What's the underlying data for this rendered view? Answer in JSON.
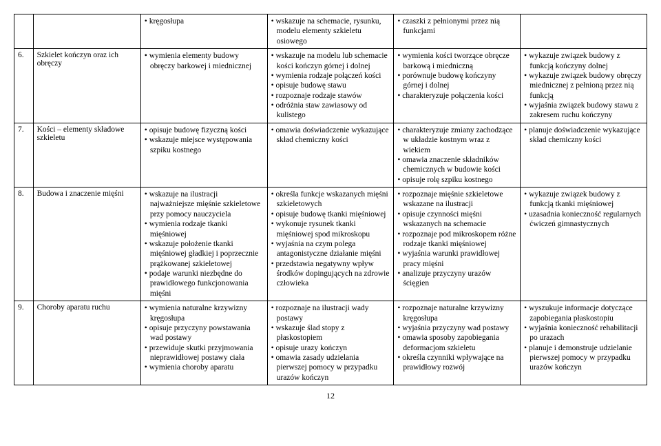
{
  "pageNumber": "12",
  "rows": [
    {
      "num": "",
      "topic": "",
      "a": [
        "kręgosłupa"
      ],
      "b": [
        "wskazuje na schemacie, rysunku, modelu elementy szkieletu osiowego"
      ],
      "c": [
        "czaszki z pełnionymi przez nią funkcjami"
      ],
      "d": []
    },
    {
      "num": "6.",
      "topic": "Szkielet kończyn oraz ich obręczy",
      "a": [
        "wymienia elementy budowy obręczy barkowej i miednicznej"
      ],
      "b": [
        "wskazuje na modelu lub schemacie kości kończyn górnej i dolnej",
        "wymienia rodzaje połączeń kości",
        "opisuje budowę stawu",
        "rozpoznaje rodzaje stawów",
        "odróżnia staw zawiasowy od kulistego"
      ],
      "c": [
        "wymienia kości tworzące obręcze barkową i miedniczną",
        "porównuje budowę kończyny górnej i dolnej",
        "charakteryzuje połączenia kości"
      ],
      "d": [
        "wykazuje związek budowy z funkcją kończyny dolnej",
        "wykazuje związek budowy obręczy miednicznej z pełnioną przez nią funkcją",
        "wyjaśnia związek budowy stawu z zakresem ruchu kończyny"
      ]
    },
    {
      "num": "7.",
      "topic": "Kości – elementy składowe szkieletu",
      "a": [
        "opisuje budowę fizyczną kości",
        "wskazuje miejsce występowania szpiku kostnego"
      ],
      "b": [
        "omawia doświadczenie wykazujące skład chemiczny kości"
      ],
      "c": [
        "charakteryzuje zmiany zachodzące w układzie kostnym wraz z wiekiem",
        "omawia znaczenie składników chemicznych w budowie kości",
        "opisuje rolę szpiku kostnego"
      ],
      "d": [
        "planuje doświadczenie wykazujące skład chemiczny kości"
      ]
    },
    {
      "num": "8.",
      "topic": "Budowa i znaczenie mięśni",
      "a": [
        "wskazuje na ilustracji najważniejsze mięśnie szkieletowe przy pomocy nauczyciela",
        "wymienia rodzaje tkanki mięśniowej",
        "wskazuje położenie tkanki mięśniowej gładkiej i poprzecznie prążkowanej szkieletowej",
        "podaje warunki niezbędne do prawidłowego funkcjonowania mięśni"
      ],
      "b": [
        "określa funkcje wskazanych mięśni szkieletowych",
        "opisuje budowę tkanki mięśniowej",
        "wykonuje rysunek tkanki mięśniowej spod mikroskopu",
        "wyjaśnia na czym polega antagonistyczne działanie mięśni",
        "przedstawia negatywny wpływ środków dopingujących na zdrowie człowieka"
      ],
      "c": [
        "rozpoznaje mięśnie szkieletowe wskazane na ilustracji",
        "opisuje czynności mięśni wskazanych na schemacie",
        "rozpoznaje pod mikroskopem różne rodzaje tkanki mięśniowej",
        "wyjaśnia warunki prawidłowej pracy mięśni",
        "analizuje przyczyny urazów ścięgien"
      ],
      "d": [
        "wykazuje związek budowy z funkcją tkanki mięśniowej",
        "uzasadnia konieczność regularnych ćwiczeń gimnastycznych"
      ]
    },
    {
      "num": "9.",
      "topic": "Choroby aparatu ruchu",
      "a": [
        "wymienia naturalne krzywizny kręgosłupa",
        "opisuje przyczyny powstawania wad postawy",
        "przewiduje skutki przyjmowania nieprawidłowej postawy ciała",
        "wymienia choroby aparatu"
      ],
      "b": [
        "rozpoznaje na ilustracji wady postawy",
        "wskazuje ślad stopy z płaskostopiem",
        "opisuje urazy kończyn",
        "omawia zasady udzielania pierwszej pomocy w przypadku urazów kończyn"
      ],
      "c": [
        "rozpoznaje naturalne krzywizny kręgosłupa",
        "wyjaśnia przyczyny wad postawy",
        "omawia sposoby zapobiegania deformacjom szkieletu",
        "określa czynniki wpływające na prawidłowy rozwój"
      ],
      "d": [
        "wyszukuje informacje dotyczące zapobiegania płaskostopiu",
        "wyjaśnia konieczność rehabilitacji po urazach",
        "planuje i demonstruje udzielanie pierwszej pomocy w przypadku urazów kończyn"
      ]
    }
  ]
}
